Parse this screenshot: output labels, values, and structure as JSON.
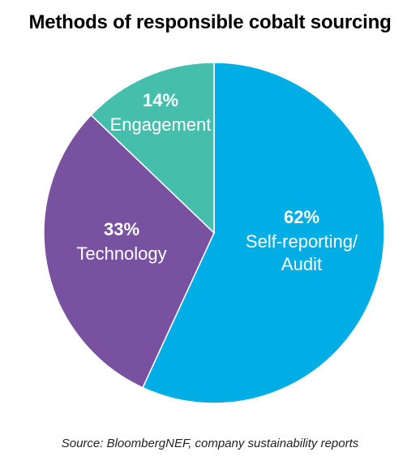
{
  "chart_data": {
    "type": "pie",
    "title": "Methods of responsible cobalt sourcing",
    "source": "Source: BloombergNEF, company sustainability reports",
    "slices": [
      {
        "percent_label": "62%",
        "label": "Self-reporting/\nAudit",
        "value": 62,
        "color": "#00ADE5",
        "text_color": "#ffffff"
      },
      {
        "percent_label": "33%",
        "label": "Technology",
        "value": 33,
        "color": "#7852A0",
        "text_color": "#ffffff"
      },
      {
        "percent_label": "14%",
        "label": "Engagement",
        "value": 14,
        "color": "#45BEAC",
        "text_color": "#ffffff"
      }
    ]
  }
}
